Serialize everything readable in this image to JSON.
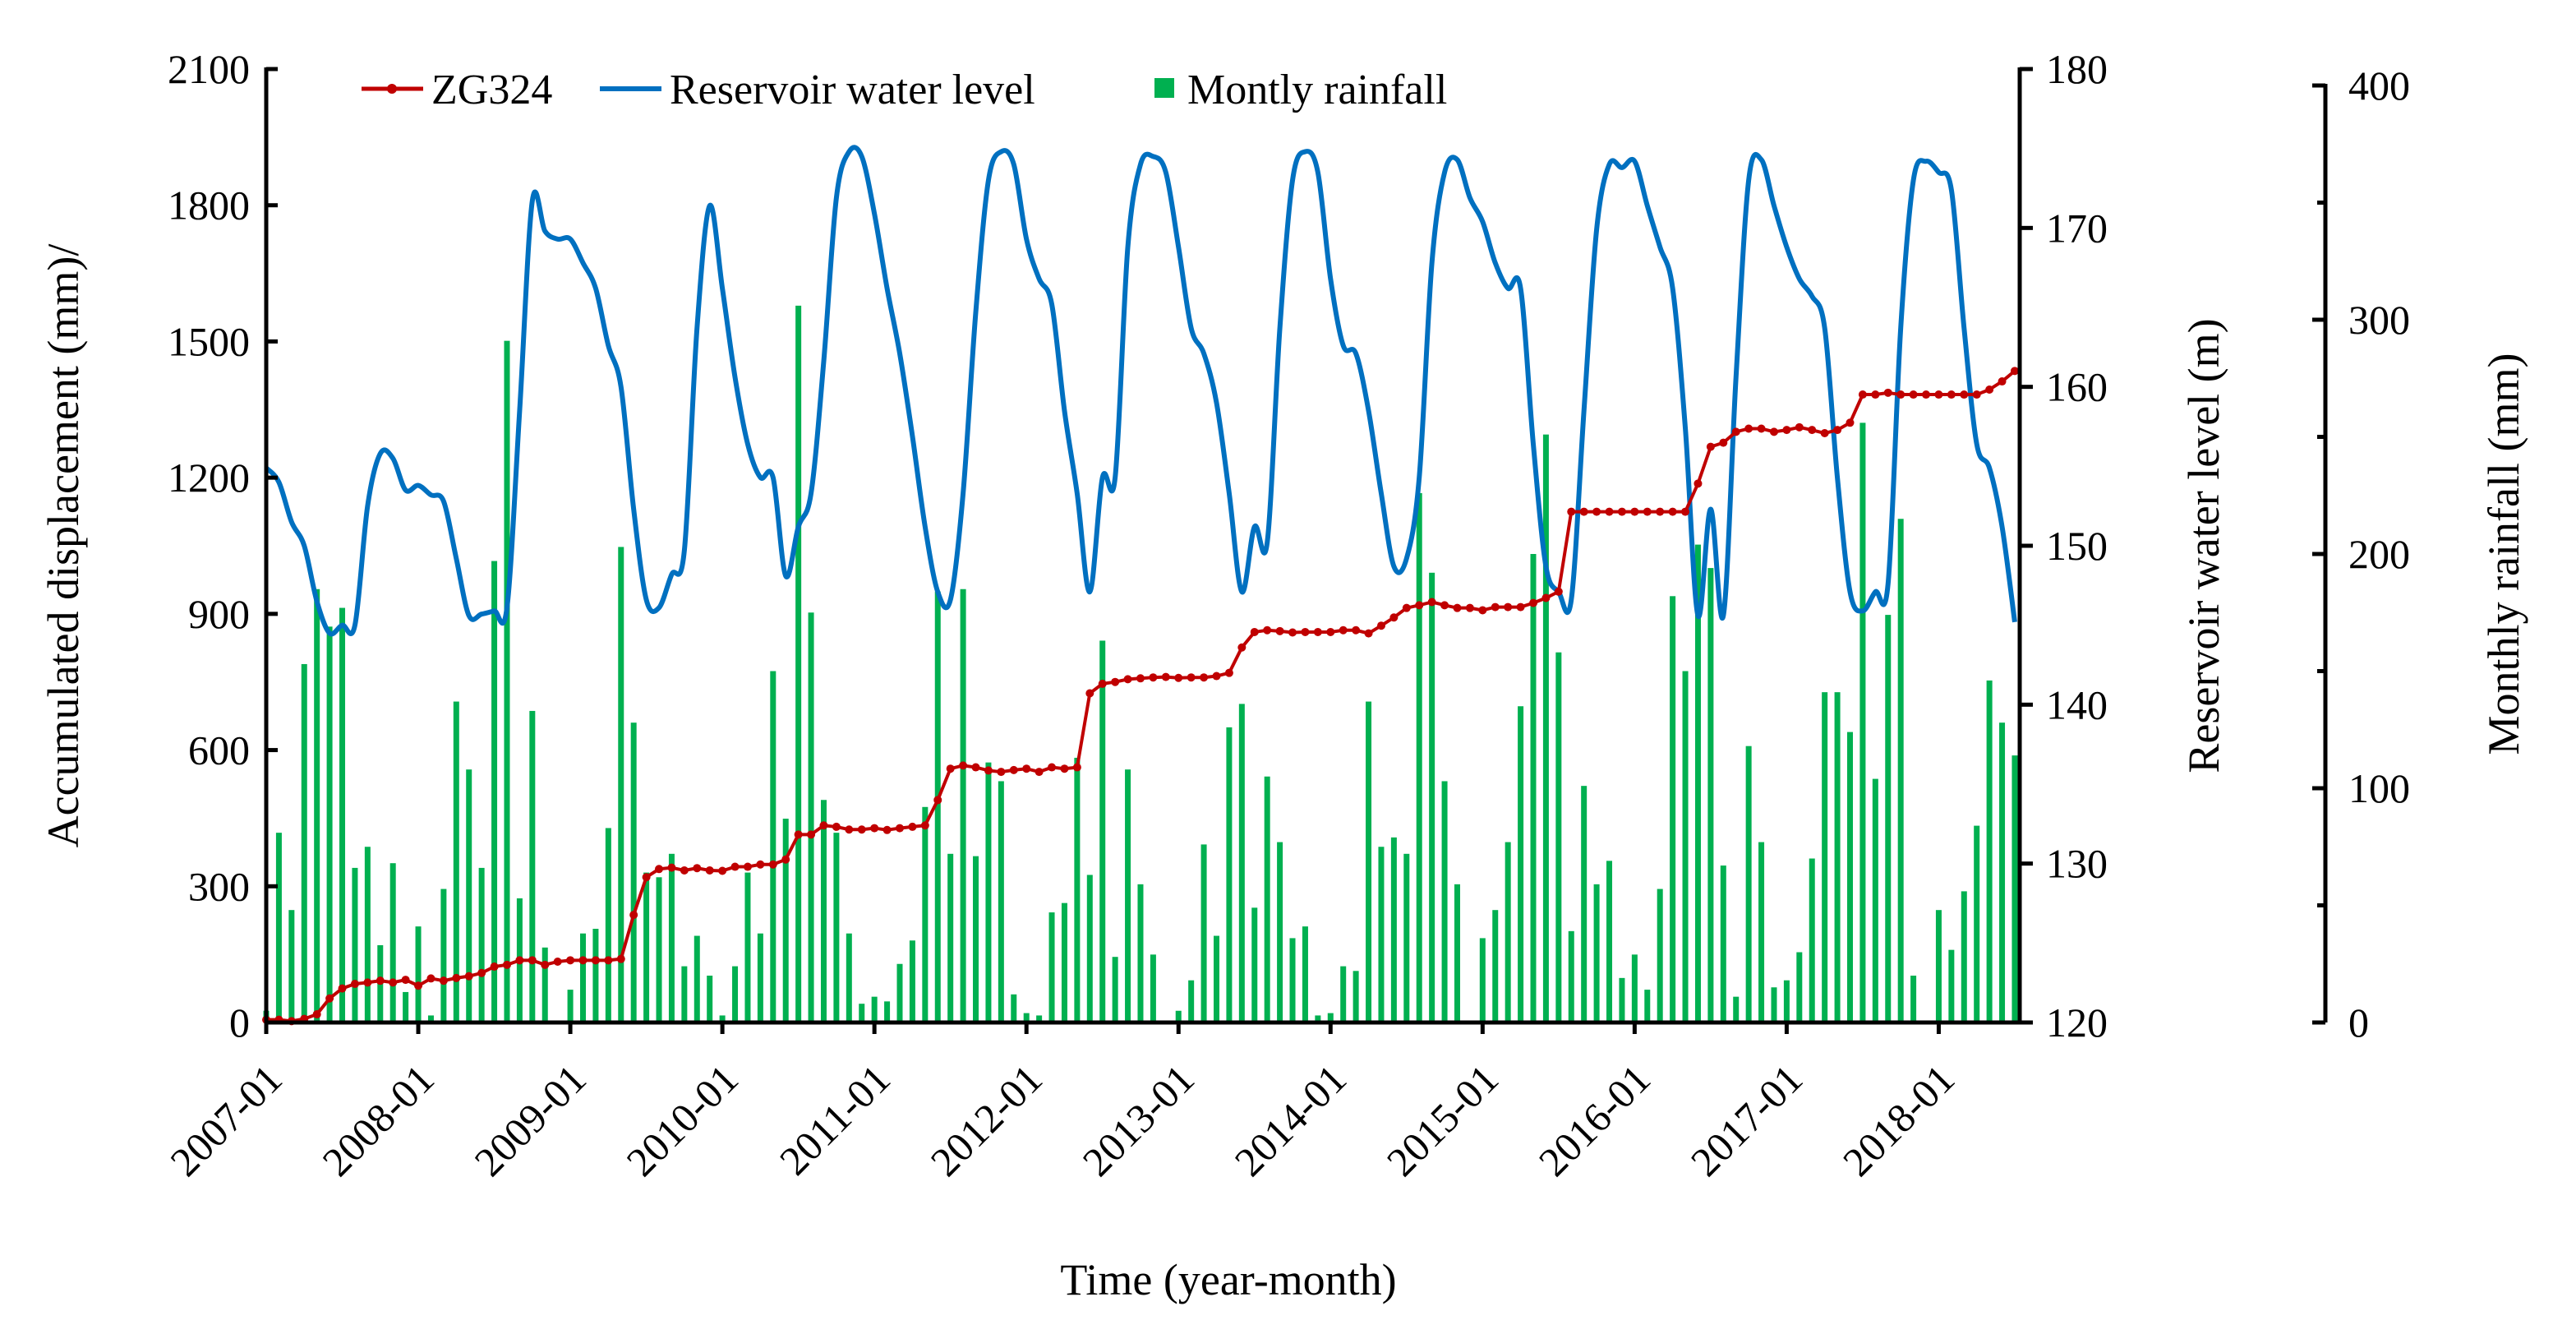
{
  "chart_data": {
    "type": "line+bar",
    "xlabel": "Time (year-month)",
    "x_start": "2007-01",
    "x_tick_labels": [
      "2007-01",
      "2008-01",
      "2009-01",
      "2010-01",
      "2011-01",
      "2012-01",
      "2013-01",
      "2014-01",
      "2015-01",
      "2016-01",
      "2017-01",
      "2018-01"
    ],
    "axes": {
      "left": {
        "label": "Accumulated displacement (mm)/",
        "range": [
          0,
          2100
        ],
        "ticks": [
          "0",
          "300",
          "600",
          "900",
          "1200",
          "1500",
          "1800",
          "2100"
        ]
      },
      "right": {
        "label": "Reservoir water level (m)",
        "range": [
          120,
          180
        ],
        "ticks": [
          "120",
          "130",
          "140",
          "150",
          "160",
          "170",
          "180"
        ]
      },
      "rain": {
        "label": "Monthly rainfall (mm)",
        "range": [
          0,
          400
        ],
        "ticks": [
          "0",
          "100",
          "200",
          "300",
          "400"
        ]
      }
    },
    "legend": {
      "placement": "top",
      "entries": [
        "ZG324",
        "Reservoir water level",
        "Montly rainfall"
      ]
    },
    "colors": {
      "displacement": "#c00000",
      "water": "#0070c0",
      "rain": "#00b050"
    },
    "series": [
      {
        "name": "ZG324",
        "axis": "left",
        "kind": "line-markers",
        "values": [
          6,
          6,
          3,
          8,
          18,
          53,
          75,
          85,
          88,
          92,
          88,
          94,
          81,
          97,
          92,
          98,
          102,
          109,
          123,
          127,
          137,
          137,
          127,
          134,
          137,
          137,
          137,
          137,
          140,
          237,
          320,
          338,
          341,
          335,
          340,
          335,
          334,
          343,
          343,
          348,
          348,
          359,
          414,
          414,
          434,
          431,
          425,
          425,
          428,
          424,
          428,
          431,
          434,
          490,
          559,
          566,
          562,
          555,
          552,
          556,
          559,
          552,
          562,
          559,
          562,
          725,
          746,
          750,
          756,
          758,
          760,
          761,
          759,
          760,
          760,
          763,
          770,
          826,
          860,
          864,
          862,
          859,
          860,
          860,
          860,
          864,
          864,
          857,
          874,
          892,
          913,
          919,
          926,
          919,
          913,
          913,
          908,
          915,
          915,
          915,
          924,
          935,
          949,
          1125,
          1125,
          1125,
          1125,
          1125,
          1125,
          1125,
          1125,
          1125,
          1125,
          1187,
          1268,
          1277,
          1301,
          1308,
          1308,
          1301,
          1305,
          1311,
          1305,
          1298,
          1305,
          1321,
          1383,
          1383,
          1387,
          1383,
          1383,
          1383,
          1383,
          1383,
          1383,
          1383,
          1394,
          1412,
          1435
        ]
      },
      {
        "name": "Reservoir water level",
        "axis": "right",
        "kind": "line",
        "values": [
          154.9,
          154.0,
          151.5,
          150.0,
          146.5,
          144.5,
          145.0,
          145.0,
          152.5,
          155.8,
          155.5,
          153.5,
          153.8,
          153.2,
          152.8,
          149.2,
          145.6,
          145.7,
          145.9,
          146.1,
          158.5,
          171.7,
          169.8,
          169.3,
          169.3,
          167.8,
          166.2,
          162.6,
          160.0,
          152.3,
          146.6,
          146.1,
          148.2,
          149.7,
          163.7,
          171.4,
          166.2,
          160.6,
          156.4,
          154.3,
          154.3,
          148.1,
          151.2,
          153.3,
          161.6,
          171.9,
          174.8,
          174.5,
          170.9,
          166.2,
          162.1,
          156.9,
          151.2,
          147.1,
          146.6,
          153.3,
          164.7,
          173.0,
          174.8,
          174.0,
          169.3,
          166.8,
          165.2,
          158.5,
          153.3,
          147.1,
          154.3,
          154.3,
          168.8,
          174.0,
          174.5,
          173.5,
          168.8,
          163.7,
          162.1,
          159.0,
          153.3,
          147.1,
          151.2,
          150.2,
          163.7,
          173.0,
          174.8,
          173.5,
          166.8,
          162.6,
          162.1,
          158.5,
          153.3,
          148.7,
          149.2,
          154.3,
          167.8,
          173.5,
          174.3,
          171.9,
          170.4,
          167.8,
          166.2,
          166.2,
          156.4,
          148.7,
          147.1,
          146.6,
          158.5,
          169.9,
          174.0,
          173.8,
          174.2,
          171.4,
          168.8,
          166.2,
          157.4,
          145.6,
          152.3,
          145.6,
          160.6,
          173.0,
          174.3,
          171.4,
          168.8,
          166.8,
          165.7,
          163.7,
          154.3,
          147.1,
          145.9,
          147.1,
          147.6,
          163.7,
          173.0,
          174.2,
          173.5,
          172.4,
          163.7,
          156.4,
          154.9,
          151.2,
          145.2
        ]
      },
      {
        "name": "Montly rainfall",
        "axis": "rain",
        "kind": "bar",
        "values": [
          5,
          81,
          48,
          153,
          185,
          169,
          177,
          66,
          75,
          33,
          68,
          13,
          41,
          3,
          57,
          137,
          108,
          66,
          197,
          291,
          53,
          133,
          32,
          0,
          14,
          38,
          40,
          83,
          203,
          128,
          64,
          62,
          72,
          24,
          37,
          20,
          3,
          24,
          64,
          38,
          150,
          87,
          306,
          175,
          95,
          81,
          38,
          8,
          11,
          9,
          25,
          35,
          92,
          184,
          72,
          185,
          71,
          111,
          103,
          12,
          4,
          3,
          47,
          51,
          113,
          63,
          163,
          28,
          108,
          59,
          29,
          0,
          5,
          18,
          76,
          37,
          126,
          136,
          49,
          105,
          77,
          36,
          41,
          3,
          4,
          24,
          22,
          137,
          75,
          79,
          72,
          226,
          192,
          103,
          59,
          0,
          36,
          48,
          77,
          135,
          200,
          251,
          158,
          39,
          101,
          59,
          69,
          19,
          29,
          14,
          57,
          182,
          150,
          204,
          194,
          67,
          11,
          118,
          77,
          15,
          18,
          30,
          70,
          141,
          141,
          124,
          256,
          104,
          174,
          215,
          20,
          0,
          48,
          31,
          56,
          84,
          146,
          128,
          114
        ]
      }
    ]
  }
}
